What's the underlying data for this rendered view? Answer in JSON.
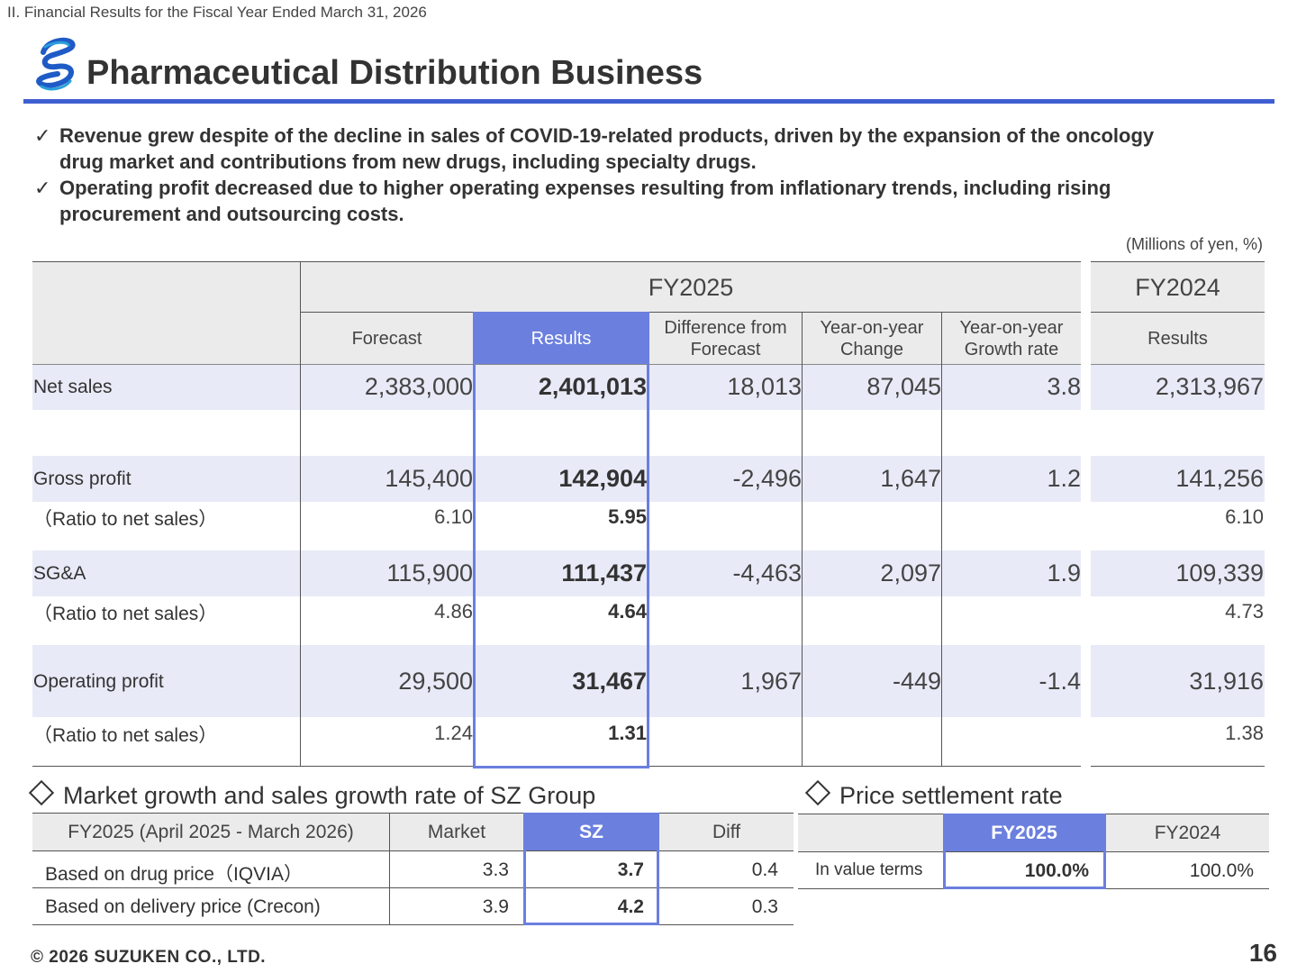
{
  "breadcrumb": "II. Financial Results for the Fiscal Year Ended March 31, 2026",
  "title": "Pharmaceutical Distribution Business",
  "bullets": [
    {
      "line1": "Revenue grew despite of the decline in sales of COVID-19-related products, driven by the expansion of the oncology",
      "line2": "drug market and contributions from new drugs, including specialty drugs."
    },
    {
      "line1": "Operating profit decreased due to higher operating expenses resulting from inflationary trends, including rising",
      "line2": "procurement and outsourcing costs."
    }
  ],
  "check_mark": "✓",
  "unit_note": "(Millions of yen, %)",
  "table": {
    "group_fy2025": "FY2025",
    "group_fy2024": "FY2024",
    "col_forecast": "Forecast",
    "col_results": "Results",
    "col_diff_1": "Difference from",
    "col_diff_2": "Forecast",
    "col_yoy_1": "Year-on-year",
    "col_yoy_2": "Change",
    "col_growth_1": "Year-on-year",
    "col_growth_2": "Growth rate",
    "col_fy24_results": "Results",
    "rows": {
      "net_sales": {
        "label": "Net sales",
        "forecast": "2,383,000",
        "results": "2,401,013",
        "diff": "18,013",
        "yoy": "87,045",
        "growth": "3.8",
        "fy24": "2,313,967"
      },
      "gross_profit": {
        "label": "Gross profit",
        "forecast": "145,400",
        "results": "142,904",
        "diff": "-2,496",
        "yoy": "1,647",
        "growth": "1.2",
        "fy24": "141,256"
      },
      "gross_ratio": {
        "label": "（Ratio to net sales）",
        "forecast": "6.10",
        "results": "5.95",
        "fy24": "6.10"
      },
      "sga": {
        "label": "SG&A",
        "forecast": "115,900",
        "results": "111,437",
        "diff": "-4,463",
        "yoy": "2,097",
        "growth": "1.9",
        "fy24": "109,339"
      },
      "sga_ratio": {
        "label": "（Ratio to net sales）",
        "forecast": "4.86",
        "results": "4.64",
        "fy24": "4.73"
      },
      "op": {
        "label": "Operating profit",
        "forecast": "29,500",
        "results": "31,467",
        "diff": "1,967",
        "yoy": "-449",
        "growth": "-1.4",
        "fy24": "31,916"
      },
      "op_ratio": {
        "label": "（Ratio to net sales）",
        "forecast": "1.24",
        "results": "1.31",
        "fy24": "1.38"
      }
    }
  },
  "market": {
    "title": "Market growth and sales growth rate of SZ Group",
    "col_period": "FY2025 (April 2025 - March 2026)",
    "col_market": "Market",
    "col_sz": "SZ",
    "col_diff": "Diff",
    "rows": [
      {
        "label": "Based on drug price（IQVIA）",
        "market": "3.3",
        "sz": "3.7",
        "diff": "0.4"
      },
      {
        "label": "Based on delivery price (Crecon)",
        "market": "3.9",
        "sz": "4.2",
        "diff": "0.3"
      }
    ]
  },
  "price": {
    "title": "Price settlement rate",
    "col_fy2025": "FY2025",
    "col_fy2024": "FY2024",
    "row_label": "In value terms",
    "fy2025": "100.0%",
    "fy2024": "100.0%"
  },
  "colors": {
    "accent": "#3f5fd1",
    "results_fill": "#6b7fde",
    "band": "#e8eaf7"
  },
  "footer": "© 2026 SUZUKEN CO., LTD.",
  "page_number": "16"
}
